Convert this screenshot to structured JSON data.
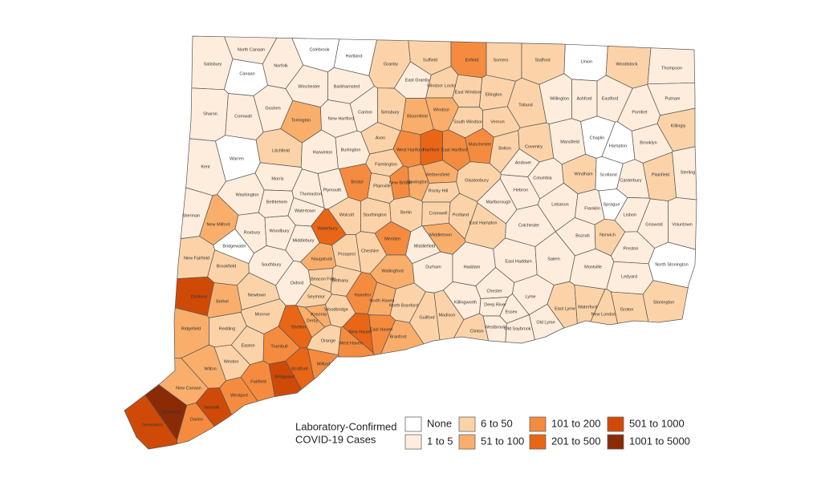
{
  "legend": {
    "title": [
      "Laboratory-Confirmed",
      "COVID-19 Cases"
    ],
    "items": [
      {
        "label": "None",
        "color": "#ffffff"
      },
      {
        "label": "1 to 5",
        "color": "#feeddc"
      },
      {
        "label": "6 to 50",
        "color": "#fcd3a8"
      },
      {
        "label": "51 to 100",
        "color": "#f9ae6b"
      },
      {
        "label": "101 to 200",
        "color": "#f58b3e"
      },
      {
        "label": "201 to 500",
        "color": "#e86616"
      },
      {
        "label": "501 to 1000",
        "color": "#d04a07"
      },
      {
        "label": "1001 to 5000",
        "color": "#8a2b06"
      }
    ]
  },
  "towns": [
    {
      "name": "Salisbury",
      "color": "#feeddc"
    },
    {
      "name": "North Canaan",
      "color": "#feeddc"
    },
    {
      "name": "Canaan",
      "color": "#ffffff"
    },
    {
      "name": "Norfolk",
      "color": "#feeddc"
    },
    {
      "name": "Colebrook",
      "color": "#ffffff"
    },
    {
      "name": "Hartland",
      "color": "#ffffff"
    },
    {
      "name": "Granby",
      "color": "#fcd3a8"
    },
    {
      "name": "Suffield",
      "color": "#fcd3a8"
    },
    {
      "name": "Enfield",
      "color": "#f58b3e"
    },
    {
      "name": "Somers",
      "color": "#fcd3a8"
    },
    {
      "name": "Stafford",
      "color": "#fcd3a8"
    },
    {
      "name": "Union",
      "color": "#ffffff"
    },
    {
      "name": "Woodstock",
      "color": "#fcd3a8"
    },
    {
      "name": "Thompson",
      "color": "#feeddc"
    },
    {
      "name": "East Granby",
      "color": "#feeddc"
    },
    {
      "name": "Windsor Locks",
      "color": "#fcd3a8"
    },
    {
      "name": "Winchester",
      "color": "#feeddc"
    },
    {
      "name": "Barkhamsted",
      "color": "#feeddc"
    },
    {
      "name": "East Windsor",
      "color": "#fcd3a8"
    },
    {
      "name": "Ellington",
      "color": "#fcd3a8"
    },
    {
      "name": "Willington",
      "color": "#feeddc"
    },
    {
      "name": "Ashford",
      "color": "#feeddc"
    },
    {
      "name": "Eastford",
      "color": "#feeddc"
    },
    {
      "name": "Pomfret",
      "color": "#feeddc"
    },
    {
      "name": "Putnam",
      "color": "#feeddc"
    },
    {
      "name": "Sharon",
      "color": "#feeddc"
    },
    {
      "name": "Cornwall",
      "color": "#feeddc"
    },
    {
      "name": "Goshen",
      "color": "#feeddc"
    },
    {
      "name": "Torrington",
      "color": "#f9ae6b"
    },
    {
      "name": "New Hartford",
      "color": "#feeddc"
    },
    {
      "name": "Canton",
      "color": "#feeddc"
    },
    {
      "name": "Simsbury",
      "color": "#fcd3a8"
    },
    {
      "name": "Bloomfield",
      "color": "#f9ae6b"
    },
    {
      "name": "Windsor",
      "color": "#f9ae6b"
    },
    {
      "name": "South Windsor",
      "color": "#fcd3a8"
    },
    {
      "name": "Vernon",
      "color": "#fcd3a8"
    },
    {
      "name": "Tolland",
      "color": "#fcd3a8"
    },
    {
      "name": "Killingly",
      "color": "#fcd3a8"
    },
    {
      "name": "Avon",
      "color": "#fcd3a8"
    },
    {
      "name": "West Hartford",
      "color": "#f58b3e"
    },
    {
      "name": "Hartford",
      "color": "#e86616"
    },
    {
      "name": "East Hartford",
      "color": "#f58b3e"
    },
    {
      "name": "Manchester",
      "color": "#f58b3e"
    },
    {
      "name": "Bolton",
      "color": "#fcd3a8"
    },
    {
      "name": "Coventry",
      "color": "#fcd3a8"
    },
    {
      "name": "Mansfield",
      "color": "#feeddc"
    },
    {
      "name": "Chaplin",
      "color": "#ffffff"
    },
    {
      "name": "Hampton",
      "color": "#ffffff"
    },
    {
      "name": "Brooklyn",
      "color": "#feeddc"
    },
    {
      "name": "Kent",
      "color": "#feeddc"
    },
    {
      "name": "Warren",
      "color": "#ffffff"
    },
    {
      "name": "Litchfield",
      "color": "#fcd3a8"
    },
    {
      "name": "Harwinton",
      "color": "#feeddc"
    },
    {
      "name": "Burlington",
      "color": "#feeddc"
    },
    {
      "name": "Farmington",
      "color": "#fcd3a8"
    },
    {
      "name": "Andover",
      "color": "#feeddc"
    },
    {
      "name": "Wethersfield",
      "color": "#f9ae6b"
    },
    {
      "name": "Newington",
      "color": "#f9ae6b"
    },
    {
      "name": "Morris",
      "color": "#feeddc"
    },
    {
      "name": "Bristol",
      "color": "#f58b3e"
    },
    {
      "name": "Plainville",
      "color": "#fcd3a8"
    },
    {
      "name": "New Britain",
      "color": "#f58b3e"
    },
    {
      "name": "Rocky Hill",
      "color": "#fcd3a8"
    },
    {
      "name": "Glastonbury",
      "color": "#fcd3a8"
    },
    {
      "name": "Columbia",
      "color": "#feeddc"
    },
    {
      "name": "Windham",
      "color": "#fcd3a8"
    },
    {
      "name": "Scotland",
      "color": "#ffffff"
    },
    {
      "name": "Canterbury",
      "color": "#feeddc"
    },
    {
      "name": "Plainfield",
      "color": "#fcd3a8"
    },
    {
      "name": "Sterling",
      "color": "#feeddc"
    },
    {
      "name": "Washington",
      "color": "#feeddc"
    },
    {
      "name": "Bethlehem",
      "color": "#feeddc"
    },
    {
      "name": "Thomaston",
      "color": "#feeddc"
    },
    {
      "name": "Plymouth",
      "color": "#feeddc"
    },
    {
      "name": "Hebron",
      "color": "#feeddc"
    },
    {
      "name": "Marlborough",
      "color": "#feeddc"
    },
    {
      "name": "Cromwell",
      "color": "#fcd3a8"
    },
    {
      "name": "Berlin",
      "color": "#fcd3a8"
    },
    {
      "name": "Sherman",
      "color": "#feeddc"
    },
    {
      "name": "New Milford",
      "color": "#f9ae6b"
    },
    {
      "name": "Watertown",
      "color": "#feeddc"
    },
    {
      "name": "Wolcott",
      "color": "#fcd3a8"
    },
    {
      "name": "Southington",
      "color": "#fcd3a8"
    },
    {
      "name": "Portland",
      "color": "#fcd3a8"
    },
    {
      "name": "East Hampton",
      "color": "#fcd3a8"
    },
    {
      "name": "Lebanon",
      "color": "#feeddc"
    },
    {
      "name": "Franklin",
      "color": "#feeddc"
    },
    {
      "name": "Sprague",
      "color": "#ffffff"
    },
    {
      "name": "Lisbon",
      "color": "#feeddc"
    },
    {
      "name": "Griswold",
      "color": "#feeddc"
    },
    {
      "name": "Voluntown",
      "color": "#feeddc"
    },
    {
      "name": "Roxbury",
      "color": "#feeddc"
    },
    {
      "name": "Woodbury",
      "color": "#feeddc"
    },
    {
      "name": "Waterbury",
      "color": "#e86616"
    },
    {
      "name": "Meriden",
      "color": "#f58b3e"
    },
    {
      "name": "Middletown",
      "color": "#f9ae6b"
    },
    {
      "name": "Colchester",
      "color": "#feeddc"
    },
    {
      "name": "Bozrah",
      "color": "#feeddc"
    },
    {
      "name": "Norwich",
      "color": "#fcd3a8"
    },
    {
      "name": "Bridgewater",
      "color": "#ffffff"
    },
    {
      "name": "Middlebury",
      "color": "#feeddc"
    },
    {
      "name": "Cheshire",
      "color": "#fcd3a8"
    },
    {
      "name": "Middlefield",
      "color": "#feeddc"
    },
    {
      "name": "Preston",
      "color": "#feeddc"
    },
    {
      "name": "New Fairfield",
      "color": "#fcd3a8"
    },
    {
      "name": "Brookfield",
      "color": "#fcd3a8"
    },
    {
      "name": "Southbury",
      "color": "#feeddc"
    },
    {
      "name": "Naugatuck",
      "color": "#f9ae6b"
    },
    {
      "name": "Prospect",
      "color": "#fcd3a8"
    },
    {
      "name": "Durham",
      "color": "#feeddc"
    },
    {
      "name": "Haddam",
      "color": "#feeddc"
    },
    {
      "name": "East Haddam",
      "color": "#feeddc"
    },
    {
      "name": "Salem",
      "color": "#feeddc"
    },
    {
      "name": "Montville",
      "color": "#feeddc"
    },
    {
      "name": "North Stonington",
      "color": "#ffffff"
    },
    {
      "name": "Danbury",
      "color": "#d04a07"
    },
    {
      "name": "Bethel",
      "color": "#f9ae6b"
    },
    {
      "name": "Newtown",
      "color": "#fcd3a8"
    },
    {
      "name": "Oxford",
      "color": "#feeddc"
    },
    {
      "name": "Beacon Falls",
      "color": "#fcd3a8"
    },
    {
      "name": "Bethany",
      "color": "#fcd3a8"
    },
    {
      "name": "Wallingford",
      "color": "#f9ae6b"
    },
    {
      "name": "Ledyard",
      "color": "#feeddc"
    },
    {
      "name": "Hamden",
      "color": "#f58b3e"
    },
    {
      "name": "North Haven",
      "color": "#f9ae6b"
    },
    {
      "name": "Seymour",
      "color": "#fcd3a8"
    },
    {
      "name": "Woodbridge",
      "color": "#fcd3a8"
    },
    {
      "name": "Ansonia",
      "color": "#f9ae6b"
    },
    {
      "name": "Derby",
      "color": "#f9ae6b"
    },
    {
      "name": "North Branford",
      "color": "#fcd3a8"
    },
    {
      "name": "Killingworth",
      "color": "#feeddc"
    },
    {
      "name": "Chester",
      "color": "#feeddc"
    },
    {
      "name": "Deep River",
      "color": "#feeddc"
    },
    {
      "name": "Lyme",
      "color": "#feeddc"
    },
    {
      "name": "Essex",
      "color": "#feeddc"
    },
    {
      "name": "East Lyme",
      "color": "#fcd3a8"
    },
    {
      "name": "Waterford",
      "color": "#fcd3a8"
    },
    {
      "name": "Groton",
      "color": "#fcd3a8"
    },
    {
      "name": "Stonington",
      "color": "#fcd3a8"
    },
    {
      "name": "Monroe",
      "color": "#fcd3a8"
    },
    {
      "name": "Ridgefield",
      "color": "#f9ae6b"
    },
    {
      "name": "Redding",
      "color": "#fcd3a8"
    },
    {
      "name": "Easton",
      "color": "#fcd3a8"
    },
    {
      "name": "Shelton",
      "color": "#e86616"
    },
    {
      "name": "New Haven",
      "color": "#e86616"
    },
    {
      "name": "East Haven",
      "color": "#f58b3e"
    },
    {
      "name": "West Haven",
      "color": "#f58b3e"
    },
    {
      "name": "Orange",
      "color": "#fcd3a8"
    },
    {
      "name": "Trumbull",
      "color": "#f58b3e"
    },
    {
      "name": "Guilford",
      "color": "#fcd3a8"
    },
    {
      "name": "Madison",
      "color": "#fcd3a8"
    },
    {
      "name": "Clinton",
      "color": "#fcd3a8"
    },
    {
      "name": "Westbrook",
      "color": "#feeddc"
    },
    {
      "name": "Old Saybrook",
      "color": "#feeddc"
    },
    {
      "name": "Old Lyme",
      "color": "#feeddc"
    },
    {
      "name": "New London",
      "color": "#fcd3a8"
    },
    {
      "name": "Branford",
      "color": "#f9ae6b"
    },
    {
      "name": "Milford",
      "color": "#f58b3e"
    },
    {
      "name": "Stratford",
      "color": "#e86616"
    },
    {
      "name": "Bridgeport",
      "color": "#d04a07"
    },
    {
      "name": "Fairfield",
      "color": "#f58b3e"
    },
    {
      "name": "Wilton",
      "color": "#f9ae6b"
    },
    {
      "name": "Weston",
      "color": "#fcd3a8"
    },
    {
      "name": "Westport",
      "color": "#f58b3e"
    },
    {
      "name": "Norwalk",
      "color": "#d04a07"
    },
    {
      "name": "New Canaan",
      "color": "#f9ae6b"
    },
    {
      "name": "Darien",
      "color": "#f58b3e"
    },
    {
      "name": "Stamford",
      "color": "#8a2b06"
    },
    {
      "name": "Greenwich",
      "color": "#d04a07"
    }
  ]
}
